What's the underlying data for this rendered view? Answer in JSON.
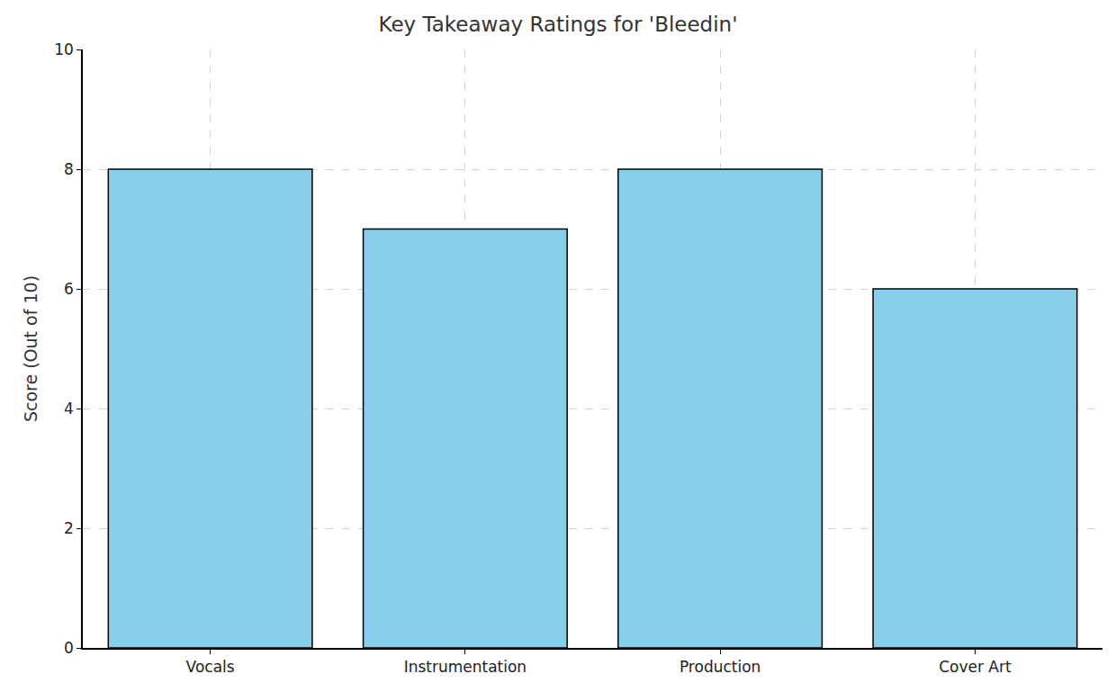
{
  "chart_data": {
    "type": "bar",
    "title": "Key Takeaway Ratings for 'Bleedin'",
    "y_label": "Score (Out of 10)",
    "categories": [
      "Vocals",
      "Instrumentation",
      "Production",
      "Cover Art"
    ],
    "values": [
      8,
      7,
      8,
      6
    ],
    "color": "#87ceeb",
    "ylim": [
      0,
      10
    ],
    "yticks": [
      0,
      2,
      4,
      6,
      8,
      10
    ],
    "grid": true
  }
}
